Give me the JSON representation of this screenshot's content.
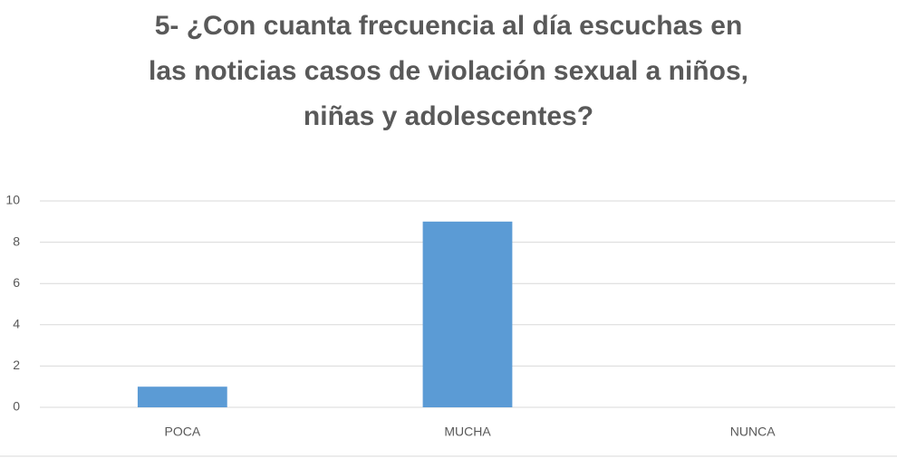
{
  "chart_data": {
    "type": "bar",
    "title": "5- ¿Con cuanta frecuencia al día escuchas en\nlas noticias casos de violación sexual a niños,\nniñas y adolescentes?",
    "categories": [
      "POCA",
      "MUCHA",
      "NUNCA"
    ],
    "values": [
      1,
      9,
      0
    ],
    "color": "#5b9bd5",
    "ylim": [
      0,
      10
    ],
    "yticks": [
      0,
      2,
      4,
      6,
      8,
      10
    ],
    "grid": true
  }
}
